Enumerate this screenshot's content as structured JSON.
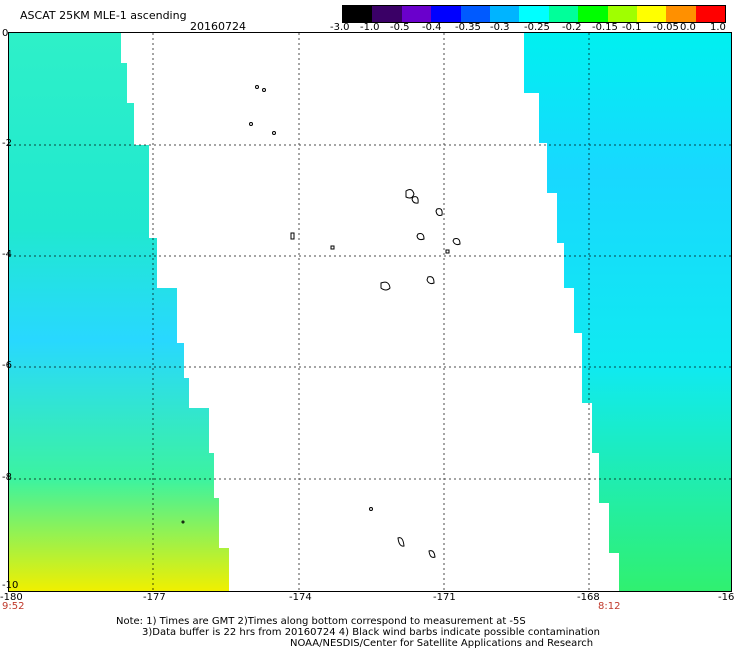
{
  "header": {
    "product": "ASCAT 25KM MLE-1 ascending",
    "date": "20160724"
  },
  "colorbar": {
    "labels": [
      "-3.0",
      "-1.0",
      "-0.5",
      "-0.4",
      "-0.35",
      "-0.3",
      "-0.25",
      "-0.2",
      "-0.15",
      "-0.1",
      "-0.05",
      "0.0",
      "1.0"
    ],
    "colors": [
      "#000000",
      "#3a0066",
      "#6a00cc",
      "#0000ff",
      "#005aff",
      "#00b4ff",
      "#00ffff",
      "#00ff9a",
      "#00ff00",
      "#a0ff00",
      "#ffff00",
      "#ff9000",
      "#ff0000"
    ]
  },
  "axes": {
    "x_ticks": [
      "-180",
      "-177",
      "-174",
      "-171",
      "-168",
      "-16"
    ],
    "y_ticks": [
      "0",
      "-2",
      "-4",
      "-6",
      "-8",
      "-10"
    ]
  },
  "times": {
    "left": "9:52",
    "right": "8:12"
  },
  "notes": {
    "line1": "Note: 1) Times are GMT 2)Times along bottom correspond to measurement at -5S",
    "line2": "3)Data buffer is 22 hrs from 20160724 4) Black wind barbs indicate possible contamination",
    "line3": "NOAA/NESDIS/Center for Satellite Applications and Research"
  }
}
